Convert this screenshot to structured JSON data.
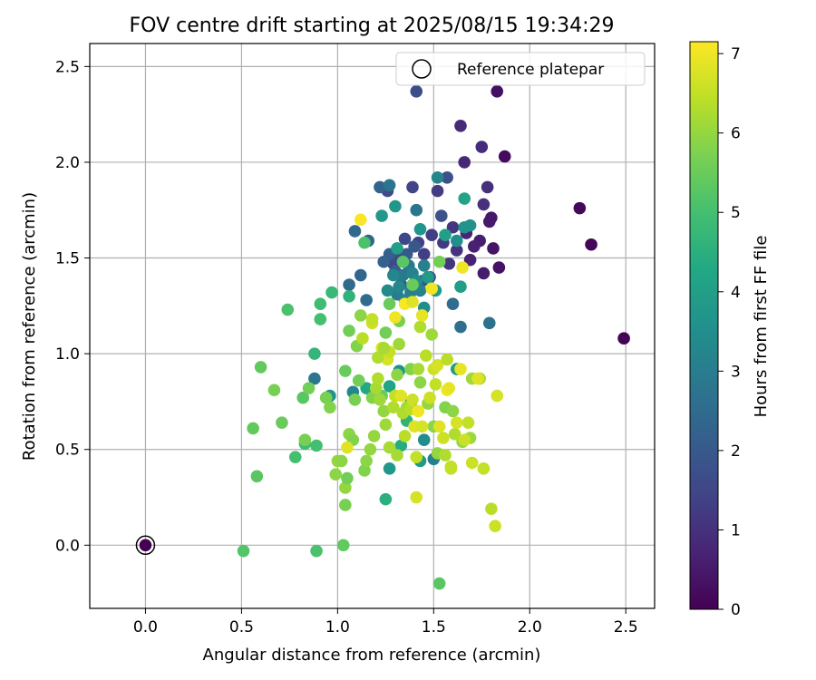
{
  "chart_data": {
    "type": "scatter",
    "title": "FOV centre drift starting at 2025/08/15 19:34:29",
    "xlabel": "Angular distance from reference (arcmin)",
    "ylabel": "Rotation from reference (arcmin)",
    "xlim": [
      -0.29,
      2.65
    ],
    "ylim": [
      -0.33,
      2.62
    ],
    "xticks": [
      0.0,
      0.5,
      1.0,
      1.5,
      2.0,
      2.5
    ],
    "xtick_labels": [
      "0.0",
      "0.5",
      "1.0",
      "1.5",
      "2.0",
      "2.5"
    ],
    "yticks": [
      0.0,
      0.5,
      1.0,
      1.5,
      2.0,
      2.5
    ],
    "ytick_labels": [
      "0.0",
      "0.5",
      "1.0",
      "1.5",
      "2.0",
      "2.5"
    ],
    "grid": true,
    "legend": {
      "placement": "top-right",
      "entries": [
        "Reference platepar"
      ]
    },
    "colorbar": {
      "label": "Hours from first FF file",
      "range": [
        0,
        7.15
      ],
      "ticks": [
        0,
        1,
        2,
        3,
        4,
        5,
        6,
        7
      ],
      "tick_labels": [
        "0",
        "1",
        "2",
        "3",
        "4",
        "5",
        "6",
        "7"
      ],
      "colormap": "viridis"
    },
    "reference_point": {
      "x": 0.0,
      "y": 0.0,
      "hours": 0.0
    },
    "points": [
      [
        2.49,
        1.08,
        0.05
      ],
      [
        2.32,
        1.57,
        0.1
      ],
      [
        2.26,
        1.76,
        0.15
      ],
      [
        1.87,
        2.03,
        0.2
      ],
      [
        1.83,
        2.37,
        0.3
      ],
      [
        1.84,
        1.45,
        0.35
      ],
      [
        1.81,
        1.55,
        0.4
      ],
      [
        1.8,
        1.71,
        0.45
      ],
      [
        1.79,
        1.69,
        0.5
      ],
      [
        1.76,
        1.42,
        0.55
      ],
      [
        1.74,
        1.59,
        0.6
      ],
      [
        1.71,
        1.56,
        0.65
      ],
      [
        1.69,
        1.49,
        0.7
      ],
      [
        1.67,
        1.63,
        0.75
      ],
      [
        1.66,
        2.0,
        0.8
      ],
      [
        1.64,
        2.19,
        0.85
      ],
      [
        1.75,
        2.08,
        0.9
      ],
      [
        1.78,
        1.87,
        0.95
      ],
      [
        1.76,
        1.78,
        1.0
      ],
      [
        1.62,
        1.54,
        1.05
      ],
      [
        1.58,
        1.47,
        1.1
      ],
      [
        1.6,
        1.66,
        1.15
      ],
      [
        1.55,
        1.58,
        1.2
      ],
      [
        1.52,
        1.85,
        1.25
      ],
      [
        1.49,
        1.62,
        1.3
      ],
      [
        1.45,
        1.52,
        1.35
      ],
      [
        1.42,
        1.58,
        1.4
      ],
      [
        1.39,
        1.87,
        1.45
      ],
      [
        1.35,
        1.6,
        1.5
      ],
      [
        1.32,
        1.5,
        1.55
      ],
      [
        1.29,
        1.47,
        1.6
      ],
      [
        1.26,
        1.85,
        1.65
      ],
      [
        1.41,
        2.37,
        1.7
      ],
      [
        1.57,
        1.92,
        1.75
      ],
      [
        1.54,
        1.72,
        1.8
      ],
      [
        1.48,
        1.4,
        1.85
      ],
      [
        1.44,
        1.38,
        1.9
      ],
      [
        1.4,
        1.56,
        1.95
      ],
      [
        1.36,
        1.52,
        2.0
      ],
      [
        1.33,
        1.36,
        2.05
      ],
      [
        1.3,
        1.43,
        2.1
      ],
      [
        1.27,
        1.52,
        2.15
      ],
      [
        1.24,
        1.48,
        2.2
      ],
      [
        1.22,
        1.87,
        2.25
      ],
      [
        1.16,
        1.59,
        2.3
      ],
      [
        1.12,
        1.41,
        2.35
      ],
      [
        1.09,
        1.64,
        2.4
      ],
      [
        1.06,
        1.36,
        2.45
      ],
      [
        1.15,
        1.28,
        2.5
      ],
      [
        1.6,
        1.26,
        2.55
      ],
      [
        1.64,
        1.14,
        2.6
      ],
      [
        1.79,
        1.16,
        2.7
      ],
      [
        1.27,
        1.88,
        2.75
      ],
      [
        1.41,
        1.75,
        2.8
      ],
      [
        1.37,
        1.46,
        2.85
      ],
      [
        1.34,
        1.41,
        2.9
      ],
      [
        1.31,
        1.31,
        2.95
      ],
      [
        1.38,
        1.32,
        3.0
      ],
      [
        1.43,
        1.33,
        3.05
      ],
      [
        1.45,
        1.46,
        3.1
      ],
      [
        1.39,
        1.42,
        3.15
      ],
      [
        1.35,
        1.28,
        3.2
      ],
      [
        1.32,
        1.35,
        3.25
      ],
      [
        1.29,
        1.41,
        3.3
      ],
      [
        1.26,
        1.33,
        3.4
      ],
      [
        1.41,
        1.38,
        3.45
      ],
      [
        1.45,
        1.24,
        3.5
      ],
      [
        1.62,
        1.59,
        3.55
      ],
      [
        1.66,
        1.66,
        3.6
      ],
      [
        1.69,
        1.67,
        3.65
      ],
      [
        1.43,
        1.65,
        3.7
      ],
      [
        1.3,
        1.77,
        3.75
      ],
      [
        1.23,
        1.72,
        3.8
      ],
      [
        1.47,
        1.4,
        3.85
      ],
      [
        1.51,
        1.33,
        3.9
      ],
      [
        1.64,
        1.35,
        3.95
      ],
      [
        1.62,
        0.92,
        4.0
      ],
      [
        1.56,
        1.62,
        4.05
      ],
      [
        1.66,
        1.81,
        4.1
      ],
      [
        1.52,
        1.92,
        3.2
      ],
      [
        0.88,
        0.87,
        2.8
      ],
      [
        0.96,
        0.78,
        3.7
      ],
      [
        1.08,
        0.8,
        3.3
      ],
      [
        1.18,
        0.8,
        3.9
      ],
      [
        1.27,
        0.83,
        4.2
      ],
      [
        1.32,
        0.91,
        3.6
      ],
      [
        1.38,
        0.74,
        3.4
      ],
      [
        1.45,
        0.55,
        3.5
      ],
      [
        1.5,
        0.45,
        3.1
      ],
      [
        1.27,
        0.4,
        3.8
      ],
      [
        1.43,
        0.44,
        3.9
      ],
      [
        1.33,
        0.52,
        4.4
      ],
      [
        1.36,
        0.65,
        4.6
      ],
      [
        1.25,
        0.24,
        4.5
      ],
      [
        1.15,
        0.82,
        4.3
      ],
      [
        1.31,
        1.55,
        4.0
      ],
      [
        1.06,
        1.3,
        4.6
      ],
      [
        0.97,
        1.32,
        4.8
      ],
      [
        0.91,
        1.26,
        4.9
      ],
      [
        0.91,
        1.18,
        5.0
      ],
      [
        0.88,
        1.0,
        4.7
      ],
      [
        0.74,
        1.23,
        5.1
      ],
      [
        0.78,
        0.46,
        5.0
      ],
      [
        0.83,
        0.53,
        4.9
      ],
      [
        0.89,
        0.52,
        5.0
      ],
      [
        0.89,
        -0.03,
        5.1
      ],
      [
        0.51,
        -0.03,
        5.2
      ],
      [
        1.03,
        0.0,
        5.4
      ],
      [
        1.53,
        -0.2,
        5.3
      ],
      [
        1.14,
        1.58,
        5.1
      ],
      [
        1.53,
        1.48,
        5.6
      ],
      [
        1.34,
        1.48,
        5.3
      ],
      [
        1.39,
        1.36,
        5.5
      ],
      [
        1.27,
        1.26,
        5.5
      ],
      [
        1.32,
        1.17,
        5.7
      ],
      [
        1.25,
        1.11,
        5.6
      ],
      [
        1.06,
        1.12,
        5.6
      ],
      [
        1.04,
        0.91,
        5.5
      ],
      [
        1.11,
        0.86,
        5.6
      ],
      [
        1.23,
        0.78,
        5.5
      ],
      [
        1.31,
        0.89,
        5.9
      ],
      [
        1.38,
        0.92,
        5.8
      ],
      [
        1.43,
        0.85,
        5.9
      ],
      [
        1.47,
        0.74,
        6.0
      ],
      [
        1.5,
        0.62,
        5.9
      ],
      [
        1.52,
        0.48,
        6.0
      ],
      [
        1.56,
        0.72,
        5.8
      ],
      [
        1.6,
        0.7,
        5.9
      ],
      [
        1.65,
        0.54,
        6.0
      ],
      [
        1.69,
        0.56,
        6.1
      ],
      [
        1.7,
        0.87,
        6.1
      ],
      [
        1.74,
        0.87,
        6.2
      ],
      [
        0.56,
        0.61,
        5.4
      ],
      [
        0.6,
        0.93,
        5.4
      ],
      [
        0.58,
        0.36,
        5.3
      ],
      [
        0.71,
        0.64,
        5.5
      ],
      [
        0.67,
        0.81,
        5.7
      ],
      [
        0.82,
        0.77,
        5.3
      ],
      [
        0.83,
        0.55,
        5.7
      ],
      [
        0.85,
        0.82,
        5.6
      ],
      [
        0.94,
        0.77,
        5.7
      ],
      [
        0.96,
        0.72,
        5.8
      ],
      [
        0.99,
        0.37,
        5.9
      ],
      [
        1.0,
        0.44,
        6.0
      ],
      [
        1.02,
        0.44,
        5.9
      ],
      [
        1.04,
        0.3,
        6.0
      ],
      [
        1.04,
        0.21,
        5.7
      ],
      [
        1.05,
        0.35,
        5.6
      ],
      [
        1.06,
        0.58,
        5.9
      ],
      [
        1.08,
        0.55,
        5.8
      ],
      [
        1.09,
        0.76,
        5.7
      ],
      [
        1.1,
        1.04,
        5.8
      ],
      [
        1.12,
        1.2,
        5.9
      ],
      [
        1.14,
        0.39,
        5.8
      ],
      [
        1.15,
        0.44,
        5.9
      ],
      [
        1.17,
        0.5,
        6.0
      ],
      [
        1.18,
        0.77,
        5.8
      ],
      [
        1.19,
        0.57,
        6.0
      ],
      [
        1.2,
        0.82,
        6.2
      ],
      [
        1.21,
        0.87,
        6.3
      ],
      [
        1.22,
        0.76,
        6.1
      ],
      [
        1.24,
        0.7,
        6.0
      ],
      [
        1.25,
        0.63,
        6.1
      ],
      [
        1.27,
        0.51,
        6.2
      ],
      [
        1.29,
        0.72,
        6.3
      ],
      [
        1.3,
        0.78,
        6.5
      ],
      [
        1.31,
        0.47,
        6.2
      ],
      [
        1.32,
        1.05,
        6.1
      ],
      [
        1.34,
        0.69,
        6.3
      ],
      [
        1.35,
        0.57,
        6.4
      ],
      [
        1.36,
        0.72,
        6.2
      ],
      [
        1.38,
        0.71,
        6.4
      ],
      [
        1.39,
        0.76,
        6.6
      ],
      [
        1.4,
        0.62,
        6.8
      ],
      [
        1.41,
        0.46,
        6.5
      ],
      [
        1.42,
        0.92,
        6.2
      ],
      [
        1.43,
        1.14,
        6.3
      ],
      [
        1.44,
        0.62,
        6.7
      ],
      [
        1.46,
        0.99,
        6.4
      ],
      [
        1.48,
        0.77,
        6.6
      ],
      [
        1.49,
        1.1,
        6.1
      ],
      [
        1.5,
        0.92,
        6.6
      ],
      [
        1.51,
        0.84,
        6.5
      ],
      [
        1.52,
        0.94,
        6.7
      ],
      [
        1.53,
        0.62,
        6.8
      ],
      [
        1.55,
        0.56,
        6.6
      ],
      [
        1.57,
        0.97,
        6.4
      ],
      [
        1.59,
        0.41,
        6.5
      ],
      [
        1.61,
        0.58,
        6.3
      ],
      [
        1.62,
        0.64,
        6.7
      ],
      [
        1.64,
        0.92,
        6.9
      ],
      [
        1.66,
        0.55,
        6.6
      ],
      [
        1.68,
        0.64,
        6.5
      ],
      [
        1.7,
        0.43,
        6.6
      ],
      [
        1.73,
        0.87,
        6.8
      ],
      [
        1.76,
        0.4,
        6.5
      ],
      [
        1.8,
        0.19,
        6.4
      ],
      [
        1.82,
        0.1,
        6.6
      ],
      [
        1.83,
        0.78,
        6.7
      ],
      [
        1.57,
        0.81,
        7.0
      ],
      [
        1.58,
        0.82,
        6.9
      ],
      [
        1.59,
        0.4,
        6.5
      ],
      [
        1.41,
        0.25,
        6.7
      ],
      [
        1.56,
        0.47,
        6.3
      ],
      [
        1.13,
        1.08,
        6.4
      ],
      [
        1.18,
        1.16,
        6.6
      ],
      [
        1.23,
        1.03,
        6.9
      ],
      [
        1.26,
        0.97,
        6.7
      ],
      [
        1.3,
        1.19,
        7.0
      ],
      [
        1.35,
        1.26,
        7.1
      ],
      [
        1.39,
        1.27,
        6.8
      ],
      [
        1.44,
        1.2,
        6.9
      ],
      [
        1.49,
        1.34,
        7.0
      ],
      [
        1.12,
        1.7,
        7.1
      ],
      [
        1.65,
        1.45,
        7.0
      ],
      [
        1.05,
        0.51,
        6.8
      ],
      [
        1.18,
        1.18,
        6.5
      ],
      [
        1.21,
        0.98,
        6.3
      ],
      [
        1.27,
        1.01,
        6.5
      ],
      [
        1.24,
        1.03,
        6.2
      ],
      [
        1.33,
        0.78,
        6.8
      ],
      [
        1.42,
        0.7,
        7.0
      ]
    ]
  }
}
